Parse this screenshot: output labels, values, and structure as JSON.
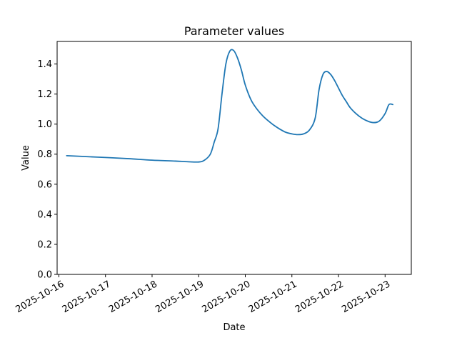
{
  "chart_data": {
    "type": "line",
    "title": "Parameter values",
    "xlabel": "Date",
    "ylabel": "Value",
    "xlim": [
      "2025-10-15 23:06",
      "2025-10-23 13:30"
    ],
    "ylim": [
      0,
      1.55
    ],
    "x_ticks": [
      "2025-10-16",
      "2025-10-17",
      "2025-10-18",
      "2025-10-19",
      "2025-10-20",
      "2025-10-21",
      "2025-10-22",
      "2025-10-23"
    ],
    "y_ticks": [
      "0.0",
      "0.2",
      "0.4",
      "0.6",
      "0.8",
      "1.0",
      "1.2",
      "1.4"
    ],
    "grid": false,
    "series": [
      {
        "color": "#1f77b4",
        "x": [
          "2025-10-16 04:00",
          "2025-10-16 12:00",
          "2025-10-17 00:00",
          "2025-10-17 12:00",
          "2025-10-18 00:00",
          "2025-10-18 12:00",
          "2025-10-18 18:00",
          "2025-10-19 00:00",
          "2025-10-19 03:00",
          "2025-10-19 06:00",
          "2025-10-19 08:00",
          "2025-10-19 10:00",
          "2025-10-19 12:00",
          "2025-10-19 14:00",
          "2025-10-19 16:00",
          "2025-10-19 18:00",
          "2025-10-19 20:00",
          "2025-10-19 22:00",
          "2025-10-20 00:00",
          "2025-10-20 03:00",
          "2025-10-20 06:00",
          "2025-10-20 09:00",
          "2025-10-20 12:00",
          "2025-10-20 15:00",
          "2025-10-20 18:00",
          "2025-10-20 21:00",
          "2025-10-21 00:00",
          "2025-10-21 03:00",
          "2025-10-21 06:00",
          "2025-10-21 09:00",
          "2025-10-21 12:00",
          "2025-10-21 14:00",
          "2025-10-21 16:00",
          "2025-10-21 18:00",
          "2025-10-21 20:00",
          "2025-10-21 22:00",
          "2025-10-22 00:00",
          "2025-10-22 02:00",
          "2025-10-22 04:00",
          "2025-10-22 06:00",
          "2025-10-22 09:00",
          "2025-10-22 12:00",
          "2025-10-22 15:00",
          "2025-10-22 18:00",
          "2025-10-22 21:00",
          "2025-10-23 00:00",
          "2025-10-23 02:00",
          "2025-10-23 04:00"
        ],
        "values": [
          0.79,
          0.785,
          0.778,
          0.77,
          0.76,
          0.754,
          0.75,
          0.748,
          0.76,
          0.8,
          0.88,
          0.97,
          1.2,
          1.4,
          1.485,
          1.49,
          1.44,
          1.36,
          1.26,
          1.16,
          1.1,
          1.055,
          1.02,
          0.99,
          0.965,
          0.945,
          0.935,
          0.93,
          0.935,
          0.96,
          1.04,
          1.23,
          1.33,
          1.35,
          1.33,
          1.29,
          1.24,
          1.19,
          1.15,
          1.11,
          1.07,
          1.04,
          1.02,
          1.01,
          1.02,
          1.07,
          1.13,
          1.13
        ]
      }
    ]
  }
}
